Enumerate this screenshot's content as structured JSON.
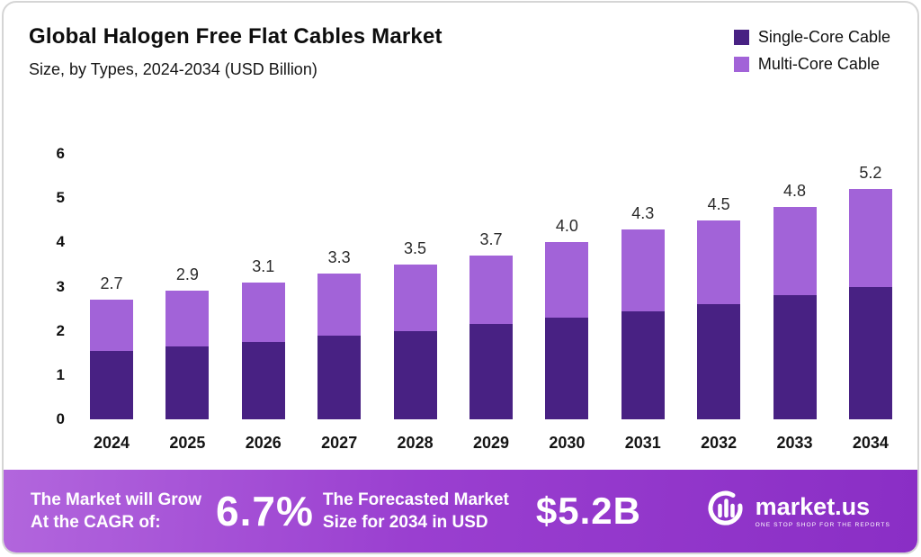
{
  "header": {
    "title": "Global Halogen Free Flat Cables Market",
    "subtitle": "Size, by Types, 2024-2034 (USD Billion)"
  },
  "legend": [
    {
      "label": "Single-Core Cable",
      "color": "#482183"
    },
    {
      "label": "Multi-Core Cable",
      "color": "#a263d8"
    }
  ],
  "chart_data": {
    "type": "bar",
    "stacked": true,
    "title": "Global Halogen Free Flat Cables Market Size, by Types, 2024-2034 (USD Billion)",
    "categories": [
      "2024",
      "2025",
      "2026",
      "2027",
      "2028",
      "2029",
      "2030",
      "2031",
      "2032",
      "2033",
      "2034"
    ],
    "series": [
      {
        "name": "Single-Core Cable",
        "color": "#482183",
        "values": [
          1.55,
          1.65,
          1.75,
          1.9,
          2.0,
          2.15,
          2.3,
          2.45,
          2.6,
          2.8,
          3.0
        ]
      },
      {
        "name": "Multi-Core Cable",
        "color": "#a263d8",
        "values": [
          1.15,
          1.25,
          1.35,
          1.4,
          1.5,
          1.55,
          1.7,
          1.85,
          1.9,
          2.0,
          2.2
        ]
      }
    ],
    "totals": [
      2.7,
      2.9,
      3.1,
      3.3,
      3.5,
      3.7,
      4.0,
      4.3,
      4.5,
      4.8,
      5.2
    ],
    "total_labels": [
      "2.7",
      "2.9",
      "3.1",
      "3.3",
      "3.5",
      "3.7",
      "4.0",
      "4.3",
      "4.5",
      "4.8",
      "5.2"
    ],
    "xlabel": "",
    "ylabel": "",
    "ylim": [
      0,
      6
    ],
    "yticks": [
      0,
      1,
      2,
      3,
      4,
      5,
      6
    ],
    "grid": false,
    "legend_position": "top-right"
  },
  "banner": {
    "cagr_label_line1": "The Market will Grow",
    "cagr_label_line2": "At the CAGR of:",
    "cagr_value": "6.7%",
    "forecast_label_line1": "The Forecasted Market",
    "forecast_label_line2": "Size for 2034 in USD",
    "forecast_value": "$5.2B",
    "brand": {
      "name": "market.us",
      "tagline": "ONE STOP SHOP FOR THE REPORTS"
    }
  },
  "colors": {
    "single_core": "#482183",
    "multi_core": "#a263d8",
    "banner_gradient_start": "#b266dd",
    "banner_gradient_end": "#8a2ec5",
    "value_label": "#2a2a2a"
  }
}
